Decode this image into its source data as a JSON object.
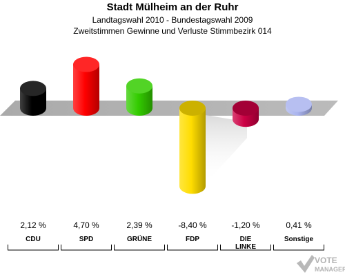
{
  "header": {
    "title": "Stadt Mülheim an der Ruhr",
    "subtitle1": "Landtagswahl 2010 - Bundestagswahl 2009",
    "subtitle2": "Zweitstimmen Gewinne und Verluste Stimmbezirk 014"
  },
  "chart_data": {
    "type": "bar",
    "title": "Stadt Mülheim an der Ruhr",
    "subtitle": "Landtagswahl 2010 - Bundestagswahl 2009 / Zweitstimmen Gewinne und Verluste Stimmbezirk 014",
    "categories": [
      "CDU",
      "SPD",
      "GRÜNE",
      "FDP",
      "DIE LINKE",
      "Sonstige"
    ],
    "category_lines": [
      [
        "CDU"
      ],
      [
        "SPD"
      ],
      [
        "GRÜNE"
      ],
      [
        "FDP"
      ],
      [
        "DIE",
        "LINKE"
      ],
      [
        "Sonstige"
      ]
    ],
    "values": [
      2.12,
      4.7,
      2.39,
      -8.4,
      -1.2,
      0.41
    ],
    "value_labels": [
      "2,12 %",
      "4,70 %",
      "2,39 %",
      "-8,40 %",
      "-1,20 %",
      "0,41 %"
    ],
    "colors": [
      "#000000",
      "#ff0000",
      "#33cc00",
      "#ffdd00",
      "#cc0044",
      "#aab4ee"
    ],
    "unit": "%",
    "grid": false,
    "legend": "none"
  },
  "watermark": {
    "text1": "VOTE",
    "text2": "MANAGER"
  }
}
